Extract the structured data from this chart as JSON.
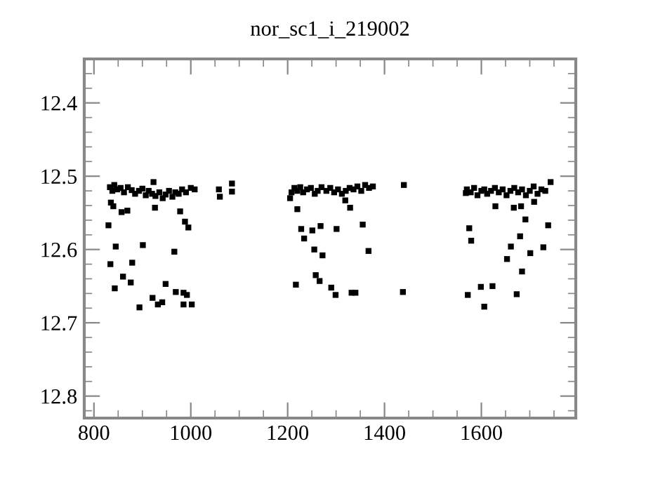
{
  "chart_data": {
    "type": "scatter",
    "title": "nor_sc1_i_219002",
    "marker": "square",
    "grid": false,
    "xlim": [
      780,
      1795
    ],
    "ylim": [
      12.83,
      12.34
    ],
    "xticks": [
      800,
      1000,
      1200,
      1400,
      1600
    ],
    "yticks": [
      {
        "value": 12.4,
        "label": "12.4"
      },
      {
        "value": 12.5,
        "label": "12.5"
      },
      {
        "value": 12.6,
        "label": "12.6"
      },
      {
        "value": 12.7,
        "label": "12.7"
      },
      {
        "value": 12.8,
        "label": "12.8"
      }
    ],
    "series": [
      {
        "color": "#000000",
        "x": [
          833,
          838,
          842,
          848,
          855,
          862,
          870,
          878,
          885,
          893,
          900,
          907,
          913,
          920,
          923,
          927,
          935,
          942,
          948,
          955,
          962,
          968,
          975,
          982,
          990,
          1000,
          1008,
          830,
          835,
          840,
          857,
          869,
          834,
          845,
          843,
          860,
          876,
          879,
          894,
          901,
          921,
          932,
          941,
          948,
          966,
          969,
          978,
          988,
          995,
          985,
          992,
          985,
          1002,
          926,
          1058,
          1060,
          1085,
          1085,
          1208,
          1214,
          1220,
          1226,
          1232,
          1240,
          1248,
          1256,
          1262,
          1270,
          1280,
          1288,
          1296,
          1304,
          1312,
          1320,
          1328,
          1336,
          1344,
          1352,
          1360,
          1368,
          1376,
          1205,
          1220,
          1319,
          1329,
          1440,
          1228,
          1234,
          1251,
          1268,
          1301,
          1355,
          1255,
          1272,
          1367,
          1217,
          1258,
          1266,
          1290,
          1299,
          1332,
          1340,
          1438,
          1570,
          1578,
          1585,
          1592,
          1600,
          1606,
          1612,
          1620,
          1628,
          1636,
          1644,
          1652,
          1660,
          1668,
          1676,
          1684,
          1692,
          1700,
          1708,
          1716,
          1724,
          1732,
          1568,
          1743,
          1629,
          1667,
          1682,
          1709,
          1691,
          1575,
          1579,
          1738,
          1680,
          1661,
          1728,
          1653,
          1701,
          1684,
          1599,
          1623,
          1572,
          1673,
          1606
        ],
        "values": [
          12.515,
          12.52,
          12.512,
          12.518,
          12.516,
          12.522,
          12.515,
          12.519,
          12.524,
          12.52,
          12.517,
          12.526,
          12.52,
          12.524,
          12.508,
          12.527,
          12.522,
          12.53,
          12.525,
          12.52,
          12.528,
          12.522,
          12.524,
          12.518,
          12.522,
          12.516,
          12.518,
          12.567,
          12.536,
          12.541,
          12.549,
          12.547,
          12.62,
          12.596,
          12.653,
          12.637,
          12.645,
          12.618,
          12.679,
          12.594,
          12.666,
          12.675,
          12.672,
          12.647,
          12.603,
          12.658,
          12.548,
          12.562,
          12.57,
          12.659,
          12.662,
          12.675,
          12.675,
          12.543,
          12.518,
          12.528,
          12.51,
          12.521,
          12.522,
          12.516,
          12.52,
          12.515,
          12.522,
          12.518,
          12.516,
          12.524,
          12.52,
          12.515,
          12.52,
          12.516,
          12.522,
          12.518,
          12.524,
          12.52,
          12.516,
          12.518,
          12.514,
          12.52,
          12.512,
          12.516,
          12.514,
          12.53,
          12.545,
          12.533,
          12.543,
          12.512,
          12.572,
          12.585,
          12.574,
          12.568,
          12.572,
          12.566,
          12.6,
          12.608,
          12.602,
          12.648,
          12.635,
          12.643,
          12.652,
          12.662,
          12.659,
          12.659,
          12.658,
          12.518,
          12.522,
          12.516,
          12.526,
          12.52,
          12.518,
          12.524,
          12.52,
          12.516,
          12.522,
          12.518,
          12.526,
          12.52,
          12.516,
          12.522,
          12.518,
          12.526,
          12.52,
          12.514,
          12.524,
          12.518,
          12.52,
          12.523,
          12.508,
          12.541,
          12.543,
          12.541,
          12.535,
          12.559,
          12.571,
          12.588,
          12.567,
          12.582,
          12.596,
          12.597,
          12.613,
          12.605,
          12.63,
          12.651,
          12.65,
          12.662,
          12.661,
          12.678
        ]
      }
    ]
  }
}
